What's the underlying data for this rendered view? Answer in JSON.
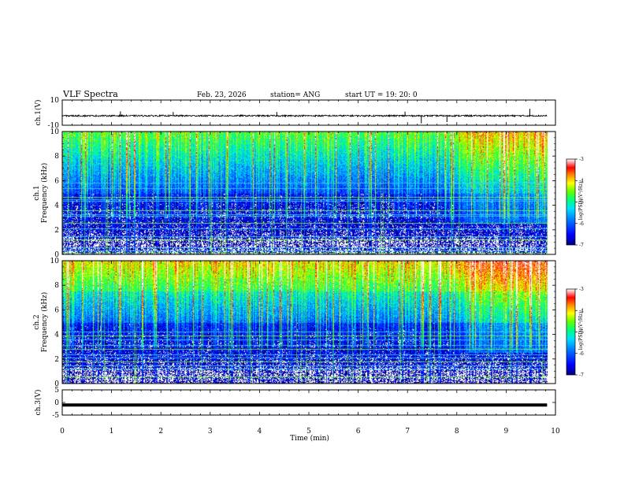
{
  "header": {
    "title": "VLF Spectra",
    "date": "Feb. 23, 2026",
    "station": "station= ANG",
    "start": "start  UT =   19: 20: 0"
  },
  "colors": {
    "spectrogram_colormap": [
      "#00008b",
      "#0000ff",
      "#0064ff",
      "#00c8ff",
      "#00ffaa",
      "#64ff00",
      "#ffff00",
      "#ff8c00",
      "#ff0000",
      "#ffffff"
    ],
    "trace": "#000000"
  },
  "chart_data": [
    {
      "type": "line",
      "name": "ch1-waveform",
      "ylabel": "ch.1(V)",
      "ylim": [
        -10,
        10
      ],
      "ytick_labels": [
        "10",
        "-10"
      ],
      "baseline": -2.5,
      "noise_amplitude": 0.6,
      "spikes": [
        {
          "t": 1.18,
          "v": 1.0
        },
        {
          "t": 2.25,
          "v": 0.5
        },
        {
          "t": 4.35,
          "v": 0.5
        },
        {
          "t": 6.95,
          "v": 0.8
        },
        {
          "t": 7.28,
          "v": -8.5
        },
        {
          "t": 7.8,
          "v": -7.5
        },
        {
          "t": 9.48,
          "v": 3.0
        }
      ]
    },
    {
      "type": "heatmap",
      "name": "ch1-spectrogram",
      "ylabel": "ch.1\nFrequency  (kHz)",
      "ylabel_line1": "ch.1",
      "ylabel_line2": "Frequency  (kHz)",
      "ylim": [
        0,
        10
      ],
      "ytick_labels": [
        "0",
        "2",
        "4",
        "6",
        "8",
        "10"
      ],
      "zlim": [
        -7,
        -3
      ],
      "colorbar_label": "log(PSD)(V²/Hz)",
      "colorbar_ticks": [
        "-3",
        "-4",
        "-5",
        "-6",
        "-7"
      ],
      "line_frequencies_khz": [
        0.15,
        0.3,
        0.6,
        1.2,
        1.5,
        2.1,
        2.55,
        3.15,
        3.3,
        3.6,
        4.35,
        4.5,
        4.65,
        5.4,
        5.85
      ],
      "description_levels": {
        "low_band": -6.8,
        "mid_band": -6.0,
        "high_band": -4.5
      }
    },
    {
      "type": "heatmap",
      "name": "ch2-spectrogram",
      "ylabel_line1": "ch.2",
      "ylabel_line2": "Frequency  (kHz)",
      "ylim": [
        0,
        10
      ],
      "ytick_labels": [
        "0",
        "2",
        "4",
        "6",
        "8",
        "10"
      ],
      "zlim": [
        -7,
        -3
      ],
      "colorbar_label": "log(PSD)(V²/Hz)",
      "colorbar_ticks": [
        "-3",
        "-4",
        "-5",
        "-6",
        "-7"
      ],
      "line_frequencies_khz": [
        0.6,
        1.2,
        1.5,
        1.8,
        2.1,
        2.4,
        2.85,
        3.15,
        3.6,
        3.9,
        4.2
      ],
      "description_levels": {
        "low_band": -6.8,
        "mid_band": -5.8,
        "high_band": -4.2
      }
    },
    {
      "type": "line",
      "name": "ch3-waveform",
      "ylabel": "ch.3(V)",
      "ylim": [
        -5,
        5
      ],
      "ytick_labels": [
        "5",
        "0",
        "-5"
      ],
      "value": -1.0
    }
  ],
  "x_axis": {
    "label": "Time  (min)",
    "range": [
      0,
      10
    ],
    "tick_labels": [
      "0",
      "1",
      "2",
      "3",
      "4",
      "5",
      "6",
      "7",
      "8",
      "9",
      "10"
    ],
    "data_end": 9.83
  }
}
